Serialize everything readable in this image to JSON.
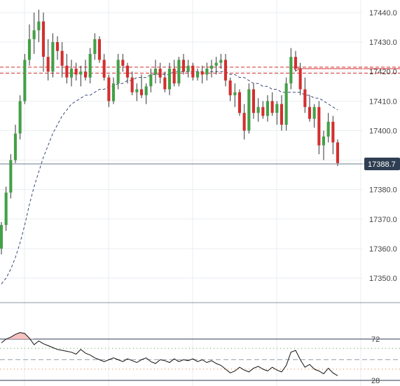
{
  "colors": {
    "up": "#43a047",
    "down": "#d32f2f",
    "grid": "#e9eef3",
    "axis_line": "#8a95a5",
    "price_line": "#6b7a8f",
    "price_tag_bg": "#2f3e52",
    "ma": "#3a4a7a",
    "resistance": "#d32f2f",
    "rsi_line": "#111111",
    "rsi_overbought_fill": "#f6b7b7",
    "rsi_green_dotted": "#7cc47c",
    "rsi_orange_dotted": "#f0a070",
    "rsi_mid_dashed": "#9aa3ad"
  },
  "chart_data": {
    "type": "candlestick",
    "price_axis": {
      "ylim": [
        17340,
        17442
      ],
      "ticks": [
        17350,
        17360,
        17370,
        17380,
        17390,
        17400,
        17410,
        17420,
        17430,
        17440
      ]
    },
    "last_price": 17388.7,
    "last_price_label": "17388.7",
    "resistance_levels": [
      17421.5,
      17419.5
    ],
    "horizontal_level": 17421,
    "candles": [
      [
        17360,
        17369,
        17358,
        17368
      ],
      [
        17368,
        17381,
        17366,
        17379
      ],
      [
        17379,
        17392,
        17377,
        17390
      ],
      [
        17390,
        17402,
        17389,
        17399
      ],
      [
        17399,
        17412,
        17397,
        17410
      ],
      [
        17410,
        17426,
        17409,
        17424
      ],
      [
        17424,
        17436,
        17422,
        17431
      ],
      [
        17431,
        17440,
        17426,
        17434
      ],
      [
        17434,
        17441,
        17430,
        17437
      ],
      [
        17437,
        17440,
        17420,
        17425
      ],
      [
        17425,
        17431,
        17417,
        17420
      ],
      [
        17420,
        17433,
        17418,
        17430
      ],
      [
        17430,
        17432,
        17424,
        17427
      ],
      [
        17427,
        17430,
        17418,
        17422
      ],
      [
        17422,
        17426,
        17416,
        17418
      ],
      [
        17418,
        17424,
        17415,
        17421
      ],
      [
        17421,
        17423,
        17417,
        17419
      ],
      [
        17419,
        17422,
        17415,
        17420
      ],
      [
        17420,
        17424,
        17417,
        17418
      ],
      [
        17418,
        17428,
        17416,
        17426
      ],
      [
        17426,
        17433,
        17424,
        17431
      ],
      [
        17431,
        17432,
        17423,
        17424
      ],
      [
        17424,
        17426,
        17417,
        17418
      ],
      [
        17418,
        17419,
        17408,
        17410
      ],
      [
        17410,
        17418,
        17409,
        17416
      ],
      [
        17416,
        17426,
        17414,
        17424
      ],
      [
        17424,
        17426,
        17420,
        17422
      ],
      [
        17422,
        17423,
        17416,
        17418
      ],
      [
        17418,
        17420,
        17412,
        17413
      ],
      [
        17413,
        17416,
        17410,
        17414
      ],
      [
        17414,
        17419,
        17411,
        17412
      ],
      [
        17412,
        17416,
        17409,
        17415
      ],
      [
        17415,
        17421,
        17413,
        17419
      ],
      [
        17419,
        17424,
        17416,
        17421
      ],
      [
        17421,
        17423,
        17416,
        17418
      ],
      [
        17418,
        17420,
        17413,
        17414
      ],
      [
        17414,
        17423,
        17412,
        17421
      ],
      [
        17421,
        17424,
        17415,
        17416
      ],
      [
        17416,
        17425,
        17415,
        17424
      ],
      [
        17424,
        17426,
        17419,
        17420
      ],
      [
        17420,
        17424,
        17418,
        17422
      ],
      [
        17422,
        17423,
        17417,
        17418
      ],
      [
        17418,
        17421,
        17417,
        17420
      ],
      [
        17420,
        17422,
        17416,
        17419
      ],
      [
        17419,
        17423,
        17417,
        17421
      ],
      [
        17421,
        17424,
        17418,
        17422
      ],
      [
        17422,
        17425,
        17419,
        17423
      ],
      [
        17423,
        17426,
        17421,
        17424
      ],
      [
        17424,
        17426,
        17415,
        17417
      ],
      [
        17417,
        17418,
        17410,
        17412
      ],
      [
        17412,
        17416,
        17408,
        17413
      ],
      [
        17413,
        17414,
        17405,
        17406
      ],
      [
        17406,
        17409,
        17397,
        17400
      ],
      [
        17400,
        17416,
        17399,
        17414
      ],
      [
        17414,
        17416,
        17404,
        17406
      ],
      [
        17406,
        17411,
        17403,
        17408
      ],
      [
        17408,
        17410,
        17404,
        17405
      ],
      [
        17405,
        17412,
        17403,
        17410
      ],
      [
        17410,
        17413,
        17405,
        17406
      ],
      [
        17406,
        17410,
        17402,
        17409
      ],
      [
        17409,
        17412,
        17400,
        17402
      ],
      [
        17402,
        17418,
        17400,
        17416
      ],
      [
        17416,
        17428,
        17414,
        17425
      ],
      [
        17425,
        17427,
        17420,
        17421
      ],
      [
        17421,
        17423,
        17412,
        17414
      ],
      [
        17414,
        17418,
        17406,
        17408
      ],
      [
        17408,
        17412,
        17403,
        17404
      ],
      [
        17404,
        17409,
        17401,
        17408
      ],
      [
        17408,
        17410,
        17392,
        17395
      ],
      [
        17395,
        17400,
        17390,
        17398
      ],
      [
        17398,
        17406,
        17396,
        17403
      ],
      [
        17403,
        17405,
        17392,
        17396
      ],
      [
        17396,
        17397,
        17388,
        17389
      ]
    ],
    "moving_average": [
      17348,
      17350,
      17353,
      17357,
      17362,
      17368,
      17375,
      17381,
      17386,
      17391,
      17395,
      17399,
      17402,
      17405,
      17407,
      17409,
      17410,
      17411,
      17412,
      17412,
      17413,
      17414,
      17414,
      17415,
      17415,
      17416,
      17416,
      17417,
      17417,
      17418,
      17418,
      17418,
      17419,
      17419,
      17419,
      17419,
      17419,
      17420,
      17420,
      17420,
      17420,
      17420,
      17420,
      17420,
      17420,
      17420,
      17420,
      17420,
      17420,
      17419,
      17419,
      17418,
      17418,
      17417,
      17416,
      17416,
      17415,
      17415,
      17414,
      17414,
      17413,
      17413,
      17413,
      17413,
      17413,
      17412,
      17412,
      17411,
      17411,
      17410,
      17409,
      17408,
      17407
    ],
    "rsi": {
      "ylim": [
        20,
        85
      ],
      "levels": [
        72,
        28
      ],
      "level_labels": [
        "72",
        "28"
      ],
      "values": [
        68,
        72,
        74,
        77,
        79,
        78,
        73,
        66,
        70,
        67,
        65,
        63,
        61,
        60,
        59,
        58,
        56,
        61,
        57,
        55,
        52,
        50,
        48,
        50,
        52,
        50,
        48,
        51,
        49,
        47,
        50,
        52,
        48,
        46,
        50,
        49,
        47,
        51,
        48,
        50,
        49,
        51,
        48,
        50,
        47,
        49,
        46,
        44,
        40,
        36,
        38,
        42,
        39,
        37,
        41,
        43,
        40,
        38,
        42,
        39,
        37,
        44,
        58,
        60,
        50,
        42,
        45,
        40,
        38,
        35,
        41,
        36,
        33
      ]
    }
  }
}
